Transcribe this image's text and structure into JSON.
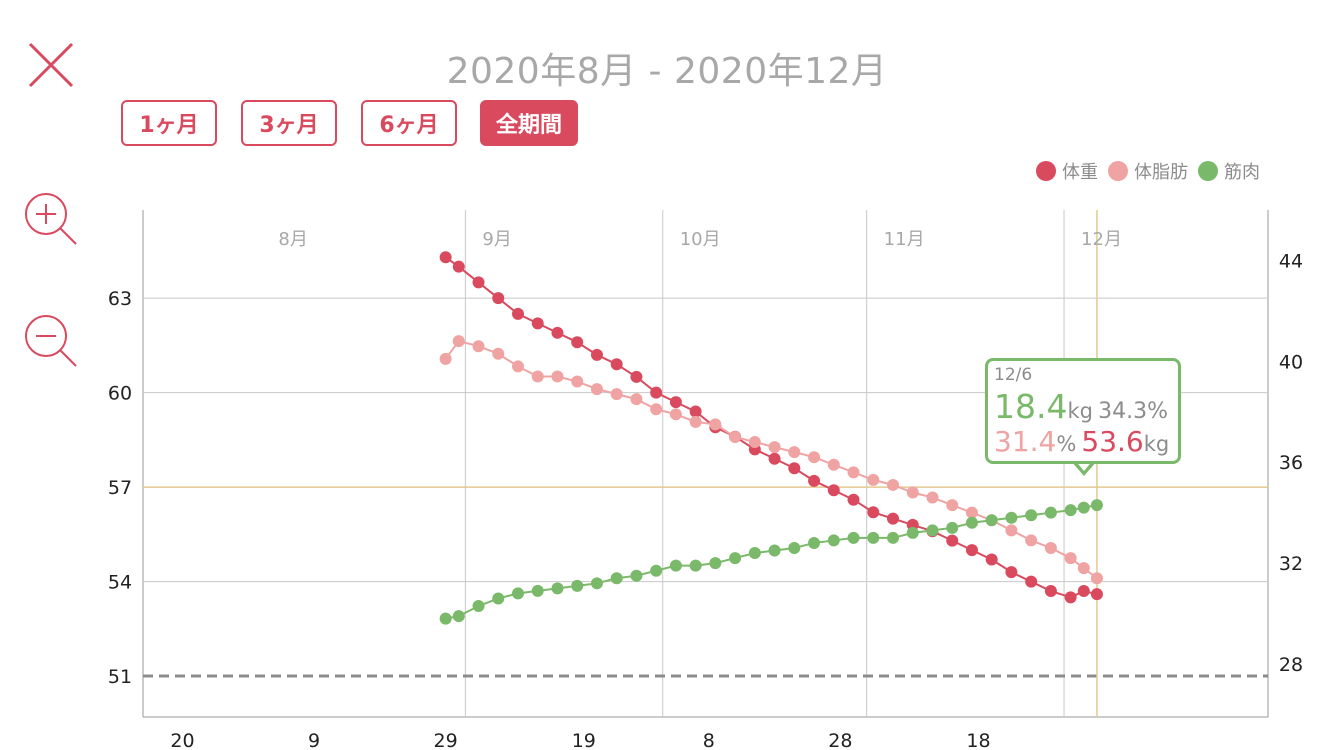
{
  "header": {
    "title": "2020年8月 - 2020年12月",
    "close_icon": "close-icon"
  },
  "range_buttons": [
    {
      "label": "1ヶ月",
      "active": false
    },
    {
      "label": "3ヶ月",
      "active": false
    },
    {
      "label": "6ヶ月",
      "active": false
    },
    {
      "label": "全期間",
      "active": true
    }
  ],
  "zoom": {
    "zoom_in_icon": "zoom-in-icon",
    "zoom_out_icon": "zoom-out-icon"
  },
  "colors": {
    "weight": "#d94a5f",
    "body_fat": "#f0a3a3",
    "muscle": "#7bb96a",
    "accent": "#d94a5f"
  },
  "tooltip": {
    "date": "12/6",
    "muscle_mass": "18.4",
    "mass_unit": "kg",
    "muscle_pct": "34.3%",
    "body_fat": "31.4",
    "pct_unit": "%",
    "weight": "53.6",
    "weight_unit": "kg"
  },
  "chart_data": {
    "type": "line",
    "title": "",
    "xlabel": "",
    "ylabel": "",
    "x_start": "2020-07-14",
    "x_end": "2021-01-01",
    "month_labels": [
      {
        "date": "2020-08-01",
        "label": "8月"
      },
      {
        "date": "2020-09-01",
        "label": "9月"
      },
      {
        "date": "2020-10-01",
        "label": "10月"
      },
      {
        "date": "2020-11-01",
        "label": "11月"
      },
      {
        "date": "2020-12-01",
        "label": "12月"
      }
    ],
    "x_ticks": [
      {
        "date": "2020-07-20",
        "label": "20"
      },
      {
        "date": "2020-08-09",
        "label": "9"
      },
      {
        "date": "2020-08-29",
        "label": "29"
      },
      {
        "date": "2020-09-19",
        "label": "19"
      },
      {
        "date": "2020-10-08",
        "label": "8"
      },
      {
        "date": "2020-10-28",
        "label": "28"
      },
      {
        "date": "2020-11-18",
        "label": "18"
      }
    ],
    "y_left": {
      "min": 49.7,
      "max": 65.8,
      "ticks": [
        51,
        54,
        57,
        60,
        63
      ]
    },
    "y_right": {
      "min": 25.9,
      "max": 46.0,
      "ticks": [
        28,
        32,
        36,
        40,
        44
      ]
    },
    "goal_line": 51,
    "highlight_value": 57,
    "highlight_date": "2020-12-06",
    "legend": {
      "position": "top-right"
    },
    "grid": true,
    "series": [
      {
        "name": "体重",
        "axis": "left",
        "x": [
          "2020-08-29",
          "2020-08-31",
          "2020-09-03",
          "2020-09-06",
          "2020-09-09",
          "2020-09-12",
          "2020-09-15",
          "2020-09-18",
          "2020-09-21",
          "2020-09-24",
          "2020-09-27",
          "2020-09-30",
          "2020-10-03",
          "2020-10-06",
          "2020-10-09",
          "2020-10-12",
          "2020-10-15",
          "2020-10-18",
          "2020-10-21",
          "2020-10-24",
          "2020-10-27",
          "2020-10-30",
          "2020-11-02",
          "2020-11-05",
          "2020-11-08",
          "2020-11-11",
          "2020-11-14",
          "2020-11-17",
          "2020-11-20",
          "2020-11-23",
          "2020-11-26",
          "2020-11-29",
          "2020-12-02",
          "2020-12-04",
          "2020-12-06"
        ],
        "y": [
          64.3,
          64.0,
          63.5,
          63.0,
          62.5,
          62.2,
          61.9,
          61.6,
          61.2,
          60.9,
          60.5,
          60.0,
          59.7,
          59.4,
          58.9,
          58.6,
          58.2,
          57.9,
          57.6,
          57.2,
          56.9,
          56.6,
          56.2,
          56.0,
          55.8,
          55.6,
          55.3,
          55.0,
          54.7,
          54.3,
          54.0,
          53.7,
          53.5,
          53.7,
          53.6
        ]
      },
      {
        "name": "体脂肪",
        "axis": "right",
        "x": [
          "2020-08-29",
          "2020-08-31",
          "2020-09-03",
          "2020-09-06",
          "2020-09-09",
          "2020-09-12",
          "2020-09-15",
          "2020-09-18",
          "2020-09-21",
          "2020-09-24",
          "2020-09-27",
          "2020-09-30",
          "2020-10-03",
          "2020-10-06",
          "2020-10-09",
          "2020-10-12",
          "2020-10-15",
          "2020-10-18",
          "2020-10-21",
          "2020-10-24",
          "2020-10-27",
          "2020-10-30",
          "2020-11-02",
          "2020-11-05",
          "2020-11-08",
          "2020-11-11",
          "2020-11-14",
          "2020-11-17",
          "2020-11-20",
          "2020-11-23",
          "2020-11-26",
          "2020-11-29",
          "2020-12-02",
          "2020-12-04",
          "2020-12-06"
        ],
        "y": [
          40.1,
          40.8,
          40.6,
          40.3,
          39.8,
          39.4,
          39.4,
          39.2,
          38.9,
          38.7,
          38.5,
          38.1,
          37.9,
          37.6,
          37.5,
          37.0,
          36.8,
          36.6,
          36.4,
          36.2,
          35.9,
          35.6,
          35.3,
          35.1,
          34.8,
          34.6,
          34.3,
          34.0,
          33.7,
          33.3,
          32.9,
          32.6,
          32.2,
          31.8,
          31.4
        ]
      },
      {
        "name": "筋肉",
        "axis": "right",
        "x": [
          "2020-08-29",
          "2020-08-31",
          "2020-09-03",
          "2020-09-06",
          "2020-09-09",
          "2020-09-12",
          "2020-09-15",
          "2020-09-18",
          "2020-09-21",
          "2020-09-24",
          "2020-09-27",
          "2020-09-30",
          "2020-10-03",
          "2020-10-06",
          "2020-10-09",
          "2020-10-12",
          "2020-10-15",
          "2020-10-18",
          "2020-10-21",
          "2020-10-24",
          "2020-10-27",
          "2020-10-30",
          "2020-11-02",
          "2020-11-05",
          "2020-11-08",
          "2020-11-11",
          "2020-11-14",
          "2020-11-17",
          "2020-11-20",
          "2020-11-23",
          "2020-11-26",
          "2020-11-29",
          "2020-12-02",
          "2020-12-04",
          "2020-12-06"
        ],
        "y": [
          29.8,
          29.9,
          30.3,
          30.6,
          30.8,
          30.9,
          31.0,
          31.1,
          31.2,
          31.4,
          31.5,
          31.7,
          31.9,
          31.9,
          32.0,
          32.2,
          32.4,
          32.5,
          32.6,
          32.8,
          32.9,
          33.0,
          33.0,
          33.0,
          33.2,
          33.3,
          33.4,
          33.6,
          33.7,
          33.8,
          33.9,
          34.0,
          34.1,
          34.2,
          34.3
        ]
      }
    ]
  }
}
